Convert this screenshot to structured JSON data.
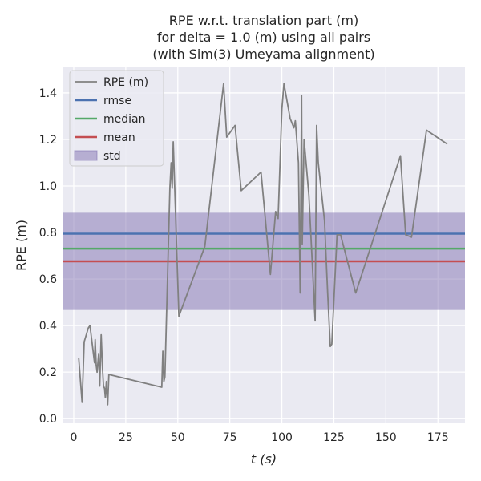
{
  "chart_data": {
    "type": "line",
    "title": [
      "RPE w.r.t. translation part (m)",
      "for delta = 1.0 (m) using all pairs",
      "(with Sim(3) Umeyama alignment)"
    ],
    "xlabel": "t (s)",
    "ylabel": "RPE (m)",
    "xlim": [
      -5,
      188
    ],
    "ylim": [
      -0.02,
      1.51
    ],
    "xticks": [
      0,
      25,
      50,
      75,
      100,
      125,
      150,
      175
    ],
    "yticks": [
      0.0,
      0.2,
      0.4,
      0.6,
      0.8,
      1.0,
      1.2,
      1.4
    ],
    "grid": true,
    "background": "#eaeaf2",
    "legend_position": "top-left",
    "series": [
      {
        "name": "RPE (m)",
        "color": "#808080",
        "x": [
          2.4,
          4.0,
          5.0,
          7.0,
          7.8,
          8.5,
          10.0,
          10.3,
          10.8,
          11.2,
          12.0,
          12.5,
          13.2,
          13.8,
          14.3,
          14.8,
          15.2,
          15.7,
          16.3,
          16.9,
          42.3,
          42.8,
          43.3,
          43.8,
          46.2,
          46.8,
          47.3,
          47.8,
          50.5,
          63.0,
          72.0,
          73.5,
          77.5,
          80.5,
          90.0,
          94.5,
          97.0,
          98.2,
          100.0,
          101.0,
          104.0,
          105.8,
          106.5,
          108.0,
          108.8,
          109.5,
          109.8,
          110.7,
          113.0,
          116.0,
          116.7,
          117.5,
          120.5,
          122.0,
          123.3,
          124.0,
          126.5,
          128.2,
          135.5,
          157.0,
          159.5,
          162.3,
          169.5,
          179.5
        ],
        "y": [
          0.26,
          0.07,
          0.33,
          0.39,
          0.4,
          0.35,
          0.24,
          0.34,
          0.23,
          0.2,
          0.28,
          0.14,
          0.36,
          0.22,
          0.14,
          0.13,
          0.09,
          0.16,
          0.06,
          0.19,
          0.135,
          0.29,
          0.16,
          0.18,
          0.99,
          1.1,
          0.99,
          1.19,
          0.44,
          0.74,
          1.44,
          1.21,
          1.26,
          0.98,
          1.06,
          0.62,
          0.89,
          0.86,
          1.33,
          1.44,
          1.29,
          1.25,
          1.28,
          1.1,
          0.54,
          1.39,
          0.75,
          1.2,
          0.96,
          0.42,
          1.26,
          1.1,
          0.85,
          0.54,
          0.31,
          0.32,
          0.79,
          0.79,
          0.54,
          1.13,
          0.79,
          0.78,
          1.24,
          1.18
        ]
      }
    ],
    "stats": [
      {
        "name": "rmse",
        "value": 0.795,
        "color": "#4c72b0"
      },
      {
        "name": "median",
        "value": 0.731,
        "color": "#55a868"
      },
      {
        "name": "mean",
        "value": 0.676,
        "color": "#c44e52"
      }
    ],
    "std": {
      "name": "std",
      "lower": 0.467,
      "upper": 0.885,
      "color": "#8172b2"
    }
  }
}
